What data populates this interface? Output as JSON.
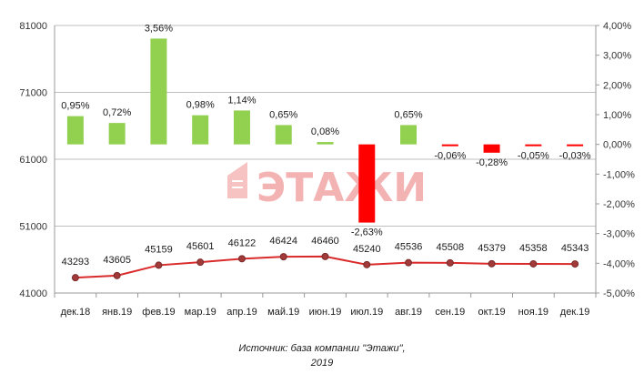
{
  "chart_data": {
    "type": "bar+line",
    "categories": [
      "дек.18",
      "янв.19",
      "фев.19",
      "мар.19",
      "апр.19",
      "май.19",
      "июн.19",
      "июл.19",
      "авг.19",
      "сен.19",
      "окт.19",
      "ноя.19",
      "дек.19"
    ],
    "series": [
      {
        "type": "bar",
        "axis": "right",
        "values": [
          0.95,
          0.72,
          3.56,
          0.98,
          1.14,
          0.65,
          0.08,
          -2.63,
          0.65,
          -0.06,
          -0.28,
          -0.05,
          -0.03
        ],
        "labels": [
          "0,95%",
          "0,72%",
          "3,56%",
          "0,98%",
          "1,14%",
          "0,65%",
          "0,08%",
          "-2,63%",
          "0,65%",
          "-0,06%",
          "-0,28%",
          "-0,05%",
          "-0,03%"
        ],
        "positive_color": "#92d050",
        "negative_color": "#ff0000"
      },
      {
        "type": "line",
        "axis": "left",
        "values": [
          43293,
          43605,
          45159,
          45601,
          46122,
          46424,
          46460,
          45240,
          45536,
          45508,
          45379,
          45358,
          45343
        ],
        "labels": [
          "43293",
          "43605",
          "45159",
          "45601",
          "46122",
          "46424",
          "46460",
          "45240",
          "45536",
          "45508",
          "45379",
          "45358",
          "45343"
        ],
        "color": "#d92b2b"
      }
    ],
    "y_left": {
      "min": 41000,
      "max": 81000,
      "ticks": [
        "41000",
        "51000",
        "61000",
        "71000",
        "81000"
      ]
    },
    "y_right": {
      "min": -5,
      "max": 4,
      "ticks": [
        "-5,00%",
        "-4,00%",
        "-3,00%",
        "-2,00%",
        "-1,00%",
        "0,00%",
        "1,00%",
        "2,00%",
        "3,00%",
        "4,00%"
      ]
    },
    "grid": "horizontal",
    "watermark": "ЭТАЖИ"
  },
  "source": {
    "line1": "Источник: база компании \"Этажи\",",
    "line2": "2019"
  }
}
